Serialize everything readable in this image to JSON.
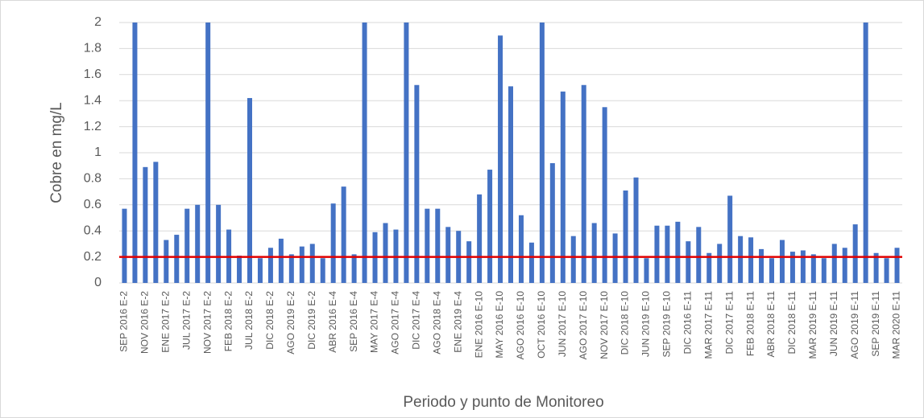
{
  "chart_data": {
    "type": "bar",
    "y_label": "Cobre en mg/L",
    "x_label": "Periodo y punto de Monitoreo",
    "categories": [
      "SEP 2016 E-2",
      null,
      "NOV 2016 E-2",
      null,
      "ENE 2017 E-2",
      null,
      "JUL 2017 E-2",
      null,
      "NOV 2017 E-2",
      null,
      "FEB 2018 E-2",
      null,
      "JUL 2018 E-2",
      null,
      "DIC 2018 E-2",
      null,
      "AGO 2019 E-2",
      null,
      "DIC 2019 E-2",
      null,
      "ABR 2016 E-4",
      null,
      "SEP 2016 E-4",
      null,
      "MAY 2017 E-4",
      null,
      "AGO 2017 E-4",
      null,
      "DIC 2017 E-4",
      null,
      "AGO 2018 E-4",
      null,
      "ENE 2019 E-4",
      null,
      "ENE 2016 E-10",
      null,
      "MAY 2016 E-10",
      null,
      "AGO 2016 E-10",
      null,
      "OCT 2016 E-10",
      null,
      "JUN 2017 E-10",
      null,
      "AGO 2017 E-10",
      null,
      "NOV 2017 E-10",
      null,
      "DIC 2018 E-10",
      null,
      "JUN 2019 E-10",
      null,
      "SEP 2019 E-10",
      null,
      "DIC 2016 E-11",
      null,
      "MAR 2017 E-11",
      null,
      "DIC 2017 E-11",
      null,
      "FEB 2018 E-11",
      null,
      "ABR 2018 E-11",
      null,
      "DIC 2018 E-11",
      null,
      "MAR 2019 E-11",
      null,
      "JUN 2019 E-11",
      null,
      "AGO 2019 E-11",
      null,
      "SEP 2019 E-11",
      null,
      "MAR 2020 E-11"
    ],
    "values": [
      0.57,
      2,
      0.89,
      0.93,
      0.33,
      0.37,
      0.57,
      0.6,
      2,
      0.6,
      0.41,
      0.21,
      1.42,
      0.19,
      0.27,
      0.34,
      0.22,
      0.28,
      0.3,
      0.19,
      0.61,
      0.74,
      0.22,
      2,
      0.39,
      0.46,
      0.41,
      2,
      1.52,
      0.57,
      0.57,
      0.43,
      0.4,
      0.32,
      0.68,
      0.87,
      1.9,
      1.51,
      0.52,
      0.31,
      2,
      0.92,
      1.47,
      0.36,
      1.52,
      0.46,
      1.35,
      0.38,
      0.71,
      0.81,
      0.19,
      0.44,
      0.44,
      0.47,
      0.32,
      0.43,
      0.23,
      0.3,
      0.67,
      0.36,
      0.35,
      0.26,
      0.19,
      0.33,
      0.24,
      0.25,
      0.22,
      0.19,
      0.3,
      0.27,
      0.45,
      2,
      0.23,
      0.19,
      0.27
    ],
    "color": "#4472c4",
    "threshold": 0.2,
    "threshold_color": "#e00000",
    "ylim": [
      0,
      2
    ],
    "yticks": [
      0,
      0.2,
      0.4,
      0.6,
      0.8,
      1,
      1.2,
      1.4,
      1.6,
      1.8,
      2
    ],
    "grid": true
  }
}
